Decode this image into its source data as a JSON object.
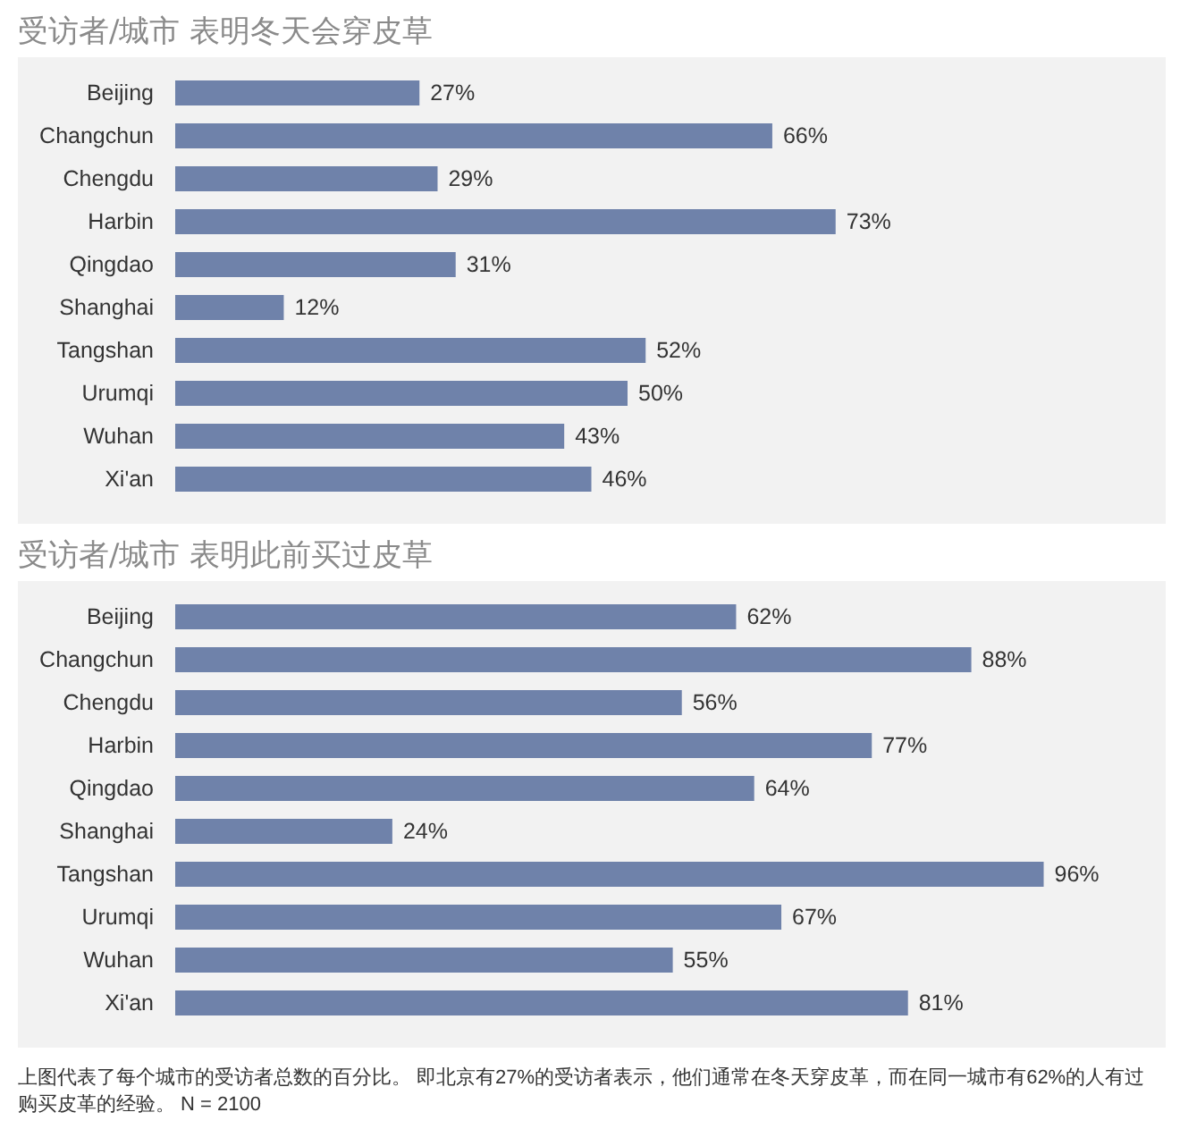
{
  "chart_data": [
    {
      "type": "bar",
      "orientation": "horizontal",
      "title": "受访者/城市  表明冬天会穿皮草",
      "relative": false,
      "data_labels": true,
      "categories": [
        "Beijing",
        "Changchun",
        "Chengdu",
        "Harbin",
        "Qingdao",
        "Shanghai",
        "Tangshan",
        "Urumqi",
        "Wuhan",
        "Xi'an"
      ],
      "color": "#6f82aa",
      "value_labels": [
        "27%",
        "66%",
        "29%",
        "73%",
        "31%",
        "12%",
        "52%",
        "50%",
        "43%",
        "46%"
      ],
      "values": [
        27,
        66,
        29,
        73,
        31,
        12,
        52,
        50,
        43,
        46
      ]
    },
    {
      "type": "bar",
      "orientation": "horizontal",
      "title": "受访者/城市  表明此前买过皮草",
      "data_labels": true,
      "categories": [
        "Beijing",
        "Changchun",
        "Chengdu",
        "Harbin",
        "Qingdao",
        "Shanghai",
        "Tangshan",
        "Urumqi",
        "Wuhan",
        "Xi'an"
      ],
      "color": "#6f82aa",
      "value_labels": [
        "62%",
        "88%",
        "56%",
        "77%",
        "64%",
        "24%",
        "96%",
        "67%",
        "55%",
        "81%"
      ],
      "values": [
        62,
        88,
        56,
        77,
        64,
        24,
        96,
        67,
        55,
        81
      ],
      "annotations": [
        "上图代表了每个城市的受访者总数的百分比。 即北京有27%的受访者表示，他们通常在冬天穿皮革，而在同一城市有62%的人有过购买皮革的经验。 N = 2100"
      ]
    }
  ]
}
